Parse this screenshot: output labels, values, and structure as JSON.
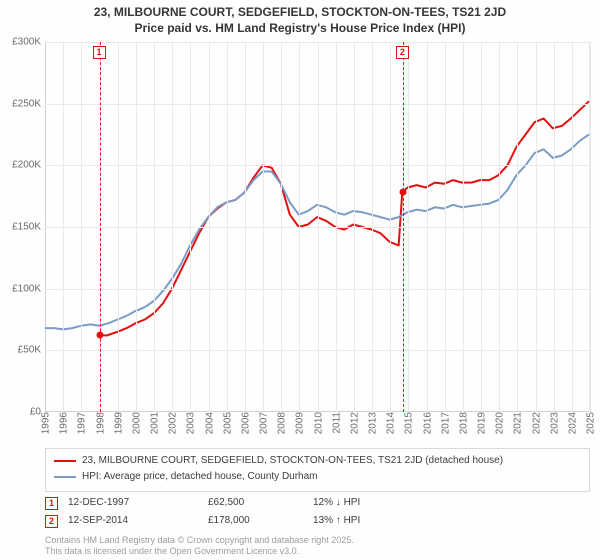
{
  "title": {
    "line1": "23, MILBOURNE COURT, SEDGEFIELD, STOCKTON-ON-TEES, TS21 2JD",
    "line2": "Price paid vs. HM Land Registry's House Price Index (HPI)",
    "fontsize": 12,
    "color": "#363636"
  },
  "chart": {
    "type": "line",
    "background_color": "#fefefe",
    "grid_color": "#e9e9ea",
    "axis_color": "#cfd0d1",
    "tick_color": "#6a6b6c",
    "tick_fontsize": 10,
    "y": {
      "min": 0,
      "max": 300000,
      "step": 50000,
      "labels": [
        "£0",
        "£50K",
        "£100K",
        "£150K",
        "£200K",
        "£250K",
        "£300K"
      ]
    },
    "x": {
      "min": 1995,
      "max": 2025,
      "step": 1,
      "labels": [
        "1995",
        "1996",
        "1997",
        "1998",
        "1999",
        "2000",
        "2001",
        "2002",
        "2003",
        "2004",
        "2005",
        "2006",
        "2007",
        "2008",
        "2009",
        "2010",
        "2011",
        "2012",
        "2013",
        "2014",
        "2015",
        "2016",
        "2017",
        "2018",
        "2019",
        "2020",
        "2021",
        "2022",
        "2023",
        "2024",
        "2025"
      ],
      "rotation": -90
    },
    "series": [
      {
        "name": "23, MILBOURNE COURT, SEDGEFIELD, STOCKTON-ON-TEES, TS21 2JD (detached house)",
        "color": "#e31010",
        "stroke_width": 2,
        "xy": [
          [
            1998.0,
            62500
          ],
          [
            1998.4,
            62000
          ],
          [
            1999.0,
            65000
          ],
          [
            1999.5,
            68000
          ],
          [
            2000.0,
            72000
          ],
          [
            2000.5,
            75000
          ],
          [
            2001.0,
            80000
          ],
          [
            2001.5,
            88000
          ],
          [
            2002.0,
            100000
          ],
          [
            2002.5,
            115000
          ],
          [
            2003.0,
            130000
          ],
          [
            2003.5,
            145000
          ],
          [
            2004.0,
            158000
          ],
          [
            2004.5,
            165000
          ],
          [
            2005.0,
            170000
          ],
          [
            2005.5,
            172000
          ],
          [
            2006.0,
            178000
          ],
          [
            2006.5,
            190000
          ],
          [
            2007.0,
            200000
          ],
          [
            2007.5,
            198000
          ],
          [
            2008.0,
            185000
          ],
          [
            2008.5,
            160000
          ],
          [
            2009.0,
            150000
          ],
          [
            2009.5,
            152000
          ],
          [
            2010.0,
            158000
          ],
          [
            2010.5,
            155000
          ],
          [
            2011.0,
            150000
          ],
          [
            2011.5,
            148000
          ],
          [
            2012.0,
            152000
          ],
          [
            2012.5,
            150000
          ],
          [
            2013.0,
            148000
          ],
          [
            2013.5,
            145000
          ],
          [
            2014.0,
            138000
          ],
          [
            2014.5,
            135000
          ],
          [
            2014.7,
            178000
          ],
          [
            2015.0,
            182000
          ],
          [
            2015.5,
            184000
          ],
          [
            2016.0,
            182000
          ],
          [
            2016.5,
            186000
          ],
          [
            2017.0,
            185000
          ],
          [
            2017.5,
            188000
          ],
          [
            2018.0,
            186000
          ],
          [
            2018.5,
            186000
          ],
          [
            2019.0,
            188000
          ],
          [
            2019.5,
            188000
          ],
          [
            2020.0,
            192000
          ],
          [
            2020.5,
            200000
          ],
          [
            2021.0,
            215000
          ],
          [
            2021.5,
            225000
          ],
          [
            2022.0,
            235000
          ],
          [
            2022.5,
            238000
          ],
          [
            2023.0,
            230000
          ],
          [
            2023.5,
            232000
          ],
          [
            2024.0,
            238000
          ],
          [
            2024.5,
            245000
          ],
          [
            2025.0,
            252000
          ]
        ]
      },
      {
        "name": "HPI: Average price, detached house, County Durham",
        "color": "#7a9cc6",
        "stroke_width": 2,
        "xy": [
          [
            1995.0,
            68000
          ],
          [
            1995.5,
            68000
          ],
          [
            1996.0,
            67000
          ],
          [
            1996.5,
            68000
          ],
          [
            1997.0,
            70000
          ],
          [
            1997.5,
            71000
          ],
          [
            1998.0,
            70000
          ],
          [
            1998.5,
            72000
          ],
          [
            1999.0,
            75000
          ],
          [
            1999.5,
            78000
          ],
          [
            2000.0,
            82000
          ],
          [
            2000.5,
            85000
          ],
          [
            2001.0,
            90000
          ],
          [
            2001.5,
            98000
          ],
          [
            2002.0,
            108000
          ],
          [
            2002.5,
            120000
          ],
          [
            2003.0,
            135000
          ],
          [
            2003.5,
            148000
          ],
          [
            2004.0,
            158000
          ],
          [
            2004.5,
            166000
          ],
          [
            2005.0,
            170000
          ],
          [
            2005.5,
            172000
          ],
          [
            2006.0,
            178000
          ],
          [
            2006.5,
            188000
          ],
          [
            2007.0,
            195000
          ],
          [
            2007.5,
            195000
          ],
          [
            2008.0,
            185000
          ],
          [
            2008.5,
            170000
          ],
          [
            2009.0,
            160000
          ],
          [
            2009.5,
            163000
          ],
          [
            2010.0,
            168000
          ],
          [
            2010.5,
            166000
          ],
          [
            2011.0,
            162000
          ],
          [
            2011.5,
            160000
          ],
          [
            2012.0,
            163000
          ],
          [
            2012.5,
            162000
          ],
          [
            2013.0,
            160000
          ],
          [
            2013.5,
            158000
          ],
          [
            2014.0,
            156000
          ],
          [
            2014.5,
            158000
          ],
          [
            2015.0,
            162000
          ],
          [
            2015.5,
            164000
          ],
          [
            2016.0,
            163000
          ],
          [
            2016.5,
            166000
          ],
          [
            2017.0,
            165000
          ],
          [
            2017.5,
            168000
          ],
          [
            2018.0,
            166000
          ],
          [
            2018.5,
            167000
          ],
          [
            2019.0,
            168000
          ],
          [
            2019.5,
            169000
          ],
          [
            2020.0,
            172000
          ],
          [
            2020.5,
            180000
          ],
          [
            2021.0,
            192000
          ],
          [
            2021.5,
            200000
          ],
          [
            2022.0,
            210000
          ],
          [
            2022.5,
            213000
          ],
          [
            2023.0,
            206000
          ],
          [
            2023.5,
            208000
          ],
          [
            2024.0,
            213000
          ],
          [
            2024.5,
            220000
          ],
          [
            2025.0,
            225000
          ]
        ]
      }
    ],
    "markers": [
      {
        "n": "1",
        "x": 1998.0,
        "dot_y": 62500,
        "color": "#e31010"
      },
      {
        "n": "2",
        "x": 2014.7,
        "dot_y": 178000,
        "color": "#e31010"
      }
    ]
  },
  "legend": {
    "border_color": "#d9dadb",
    "fontsize": 10,
    "items": [
      {
        "color": "#e31010",
        "label": "23, MILBOURNE COURT, SEDGEFIELD, STOCKTON-ON-TEES, TS21 2JD (detached house)"
      },
      {
        "color": "#7a9cc6",
        "label": "HPI: Average price, detached house, County Durham"
      }
    ]
  },
  "events": [
    {
      "n": "1",
      "color": "#e31010",
      "date": "12-DEC-1997",
      "price": "£62,500",
      "delta": "12% ↓ HPI"
    },
    {
      "n": "2",
      "color": "#e31010",
      "date": "12-SEP-2014",
      "price": "£178,000",
      "delta": "13% ↑ HPI"
    }
  ],
  "footer": {
    "line1": "Contains HM Land Registry data © Crown copyright and database right 2025.",
    "line2": "This data is licensed under the Open Government Licence v3.0.",
    "color": "#9c9d9e",
    "fontsize": 9
  }
}
